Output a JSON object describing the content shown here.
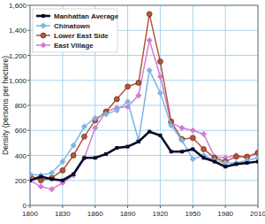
{
  "chart_data": {
    "type": "line",
    "y_label": "Density (persons per hectare)",
    "x": [
      1800,
      1810,
      1820,
      1830,
      1840,
      1850,
      1860,
      1870,
      1880,
      1890,
      1900,
      1910,
      1920,
      1930,
      1940,
      1950,
      1960,
      1970,
      1980,
      1990,
      2000,
      2010
    ],
    "series": [
      {
        "name": "Manhattan Average",
        "color": "#0a0a28",
        "marker": "square",
        "values": [
          200,
          230,
          210,
          200,
          250,
          380,
          380,
          410,
          460,
          470,
          510,
          590,
          560,
          430,
          430,
          450,
          380,
          350,
          310,
          330,
          340,
          350
        ]
      },
      {
        "name": "Chinatown",
        "color": "#7fb4e2",
        "marker": "diamond",
        "values": [
          250,
          240,
          260,
          350,
          480,
          630,
          700,
          730,
          760,
          830,
          520,
          1080,
          900,
          640,
          520,
          370,
          400,
          360,
          340,
          340,
          360,
          380
        ]
      },
      {
        "name": "Lower East Side",
        "color": "#b5563a",
        "marker": "circle",
        "values": [
          240,
          200,
          220,
          280,
          400,
          550,
          680,
          750,
          850,
          950,
          980,
          1530,
          1150,
          670,
          530,
          540,
          450,
          380,
          350,
          390,
          390,
          420
        ]
      },
      {
        "name": "East Village",
        "color": "#d07fcf",
        "marker": "diamond",
        "values": [
          200,
          150,
          130,
          180,
          240,
          380,
          620,
          750,
          780,
          790,
          880,
          1320,
          1030,
          660,
          620,
          600,
          570,
          390,
          380,
          400,
          380,
          430
        ]
      }
    ],
    "xlim": [
      1800,
      2010
    ],
    "xticks": [
      1800,
      1830,
      1860,
      1890,
      1920,
      1950,
      1980,
      2010
    ],
    "ylim": [
      0,
      1600
    ],
    "yticks": [
      0,
      200,
      400,
      600,
      800,
      {
        "value": 1000,
        "label": "1,000"
      },
      {
        "value": 1200,
        "label": "1,200"
      },
      {
        "value": 1400,
        "label": "1,400"
      },
      {
        "value": 1600,
        "label": "1,600"
      }
    ],
    "grid": true,
    "legend": "top-left"
  }
}
